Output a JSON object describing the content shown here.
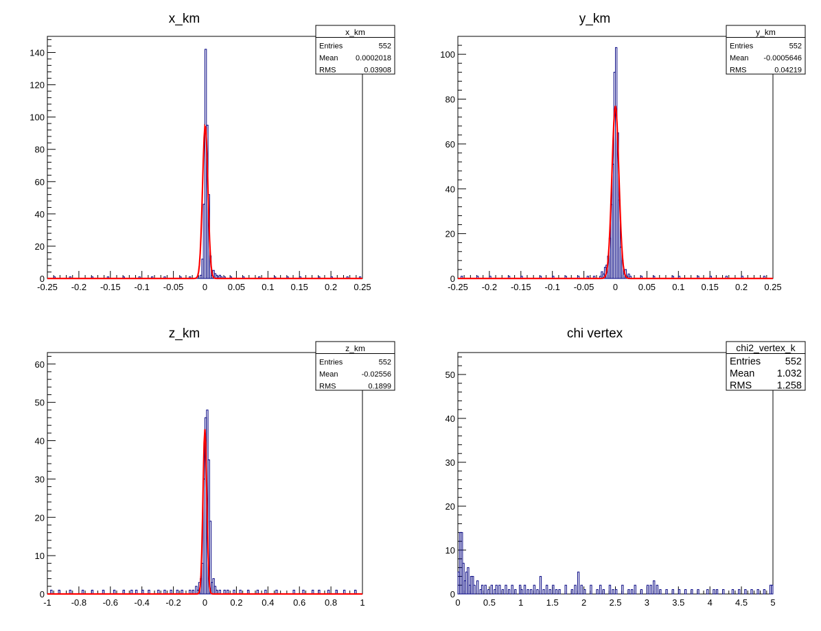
{
  "chart_data": [
    {
      "type": "histogram",
      "title": "x_km",
      "xlim": [
        -0.25,
        0.25
      ],
      "ylim": [
        0,
        150
      ],
      "xticks": [
        -0.25,
        -0.2,
        -0.15,
        -0.1,
        -0.05,
        0,
        0.05,
        0.1,
        0.15,
        0.2,
        0.25
      ],
      "xtick_labels": [
        "-0.25",
        "-0.2",
        "-0.15",
        "-0.1",
        "-0.05",
        "0",
        "0.05",
        "0.1",
        "0.15",
        "0.2",
        "0.25"
      ],
      "yticks": [
        0,
        20,
        40,
        60,
        80,
        100,
        120,
        140
      ],
      "ytick_labels": [
        "0",
        "20",
        "40",
        "60",
        "80",
        "100",
        "120",
        "140"
      ],
      "hist": {
        "bin_width": 0.0025,
        "bins": [
          [
            -0.02,
            0
          ],
          [
            -0.0125,
            1
          ],
          [
            -0.01,
            0
          ],
          [
            -0.0075,
            2
          ],
          [
            -0.005,
            12
          ],
          [
            -0.0025,
            46
          ],
          [
            0,
            142
          ],
          [
            0.0025,
            95
          ],
          [
            0.005,
            52
          ],
          [
            0.0075,
            14
          ],
          [
            0.01,
            2
          ],
          [
            0.0125,
            5
          ],
          [
            0.015,
            3
          ],
          [
            0.0175,
            2
          ],
          [
            0.02,
            1
          ],
          [
            0.0225,
            2
          ],
          [
            0.025,
            1
          ],
          [
            0.03,
            1
          ]
        ],
        "outliers": [
          -0.24,
          -0.215,
          -0.18,
          -0.155,
          -0.13,
          -0.105,
          -0.085,
          -0.065,
          -0.04,
          -0.025,
          0.04,
          0.06,
          0.085,
          0.11,
          0.13,
          0.15,
          0.18,
          0.2,
          0.225,
          0.245
        ]
      },
      "fit": {
        "mean": 0.0005,
        "sigma": 0.0042,
        "amplitude": 95
      },
      "stats": {
        "name": "x_km",
        "rows": [
          [
            "Entries",
            "552"
          ],
          [
            "Mean",
            "0.0002018"
          ],
          [
            "RMS",
            "0.03908"
          ]
        ]
      }
    },
    {
      "type": "histogram",
      "title": "y_km",
      "xlim": [
        -0.25,
        0.25
      ],
      "ylim": [
        0,
        108
      ],
      "xticks": [
        -0.25,
        -0.2,
        -0.15,
        -0.1,
        -0.05,
        0,
        0.05,
        0.1,
        0.15,
        0.2,
        0.25
      ],
      "xtick_labels": [
        "-0.25",
        "-0.2",
        "-0.15",
        "-0.1",
        "-0.05",
        "0",
        "0.05",
        "0.1",
        "0.15",
        "0.2",
        "0.25"
      ],
      "yticks": [
        0,
        20,
        40,
        60,
        80,
        100
      ],
      "ytick_labels": [
        "0",
        "20",
        "40",
        "60",
        "80",
        "100"
      ],
      "hist": {
        "bin_width": 0.0025,
        "bins": [
          [
            -0.025,
            1
          ],
          [
            -0.0225,
            3
          ],
          [
            -0.02,
            2
          ],
          [
            -0.0175,
            5
          ],
          [
            -0.015,
            6
          ],
          [
            -0.0125,
            10
          ],
          [
            -0.01,
            18
          ],
          [
            -0.0075,
            33
          ],
          [
            -0.005,
            51
          ],
          [
            -0.0025,
            92
          ],
          [
            0,
            103
          ],
          [
            0.0025,
            65
          ],
          [
            0.005,
            35
          ],
          [
            0.0075,
            14
          ],
          [
            0.01,
            8
          ],
          [
            0.0125,
            2
          ],
          [
            0.015,
            4
          ],
          [
            0.0175,
            1
          ],
          [
            0.02,
            2
          ],
          [
            0.0225,
            1
          ]
        ],
        "outliers": [
          -0.245,
          -0.22,
          -0.2,
          -0.17,
          -0.15,
          -0.12,
          -0.1,
          -0.08,
          -0.06,
          -0.045,
          -0.035,
          0.04,
          0.06,
          0.09,
          0.1,
          0.13,
          0.15,
          0.175,
          0.2,
          0.235
        ]
      },
      "fit": {
        "mean": 0.0,
        "sigma": 0.0055,
        "amplitude": 77
      },
      "stats": {
        "name": "y_km",
        "rows": [
          [
            "Entries",
            "552"
          ],
          [
            "Mean",
            "-0.0005646"
          ],
          [
            "RMS",
            "0.04219"
          ]
        ]
      }
    },
    {
      "type": "histogram",
      "title": "z_km",
      "xlim": [
        -1,
        1
      ],
      "ylim": [
        0,
        63
      ],
      "xticks": [
        -1,
        -0.8,
        -0.6,
        -0.4,
        -0.2,
        0,
        0.2,
        0.4,
        0.6,
        0.8,
        1
      ],
      "xtick_labels": [
        "-1",
        "-0.8",
        "-0.6",
        "-0.4",
        "-0.2",
        "0",
        "0.2",
        "0.4",
        "0.6",
        "0.8",
        "1"
      ],
      "yticks": [
        0,
        10,
        20,
        30,
        40,
        50,
        60
      ],
      "ytick_labels": [
        "0",
        "10",
        "20",
        "30",
        "40",
        "50",
        "60"
      ],
      "hist": {
        "bin_width": 0.01,
        "bins": [
          [
            -0.1,
            1
          ],
          [
            -0.08,
            1
          ],
          [
            -0.06,
            2
          ],
          [
            -0.05,
            1
          ],
          [
            -0.04,
            3
          ],
          [
            -0.03,
            4
          ],
          [
            -0.02,
            8
          ],
          [
            -0.01,
            30
          ],
          [
            0,
            46
          ],
          [
            0.01,
            48
          ],
          [
            0.02,
            35
          ],
          [
            0.03,
            19
          ],
          [
            0.04,
            3
          ],
          [
            0.05,
            4
          ],
          [
            0.06,
            2
          ],
          [
            0.07,
            1
          ],
          [
            0.09,
            1
          ],
          [
            0.12,
            1
          ],
          [
            0.14,
            1
          ]
        ],
        "outliers": [
          -0.98,
          -0.93,
          -0.86,
          -0.78,
          -0.72,
          -0.65,
          -0.58,
          -0.52,
          -0.47,
          -0.44,
          -0.4,
          -0.36,
          -0.3,
          -0.26,
          -0.22,
          -0.18,
          -0.15,
          0.18,
          0.22,
          0.27,
          0.33,
          0.38,
          0.45,
          0.56,
          0.62,
          0.68,
          0.72,
          0.78,
          0.83,
          0.88,
          0.95
        ]
      },
      "fit": {
        "mean": 0.0,
        "sigma": 0.012,
        "amplitude": 43
      },
      "stats": {
        "name": "z_km",
        "rows": [
          [
            "Entries",
            "552"
          ],
          [
            "Mean",
            "-0.02556"
          ],
          [
            "RMS",
            "0.1899"
          ]
        ]
      }
    },
    {
      "type": "histogram",
      "title": "chi vertex",
      "xlim": [
        0,
        5
      ],
      "ylim": [
        0,
        55
      ],
      "xticks": [
        0,
        0.5,
        1,
        1.5,
        2,
        2.5,
        3,
        3.5,
        4,
        4.5,
        5
      ],
      "xtick_labels": [
        "0",
        "0.5",
        "1",
        "1.5",
        "2",
        "2.5",
        "3",
        "3.5",
        "4",
        "4.5",
        "5"
      ],
      "yticks": [
        0,
        10,
        20,
        30,
        40,
        50
      ],
      "ytick_labels": [
        "0",
        "10",
        "20",
        "30",
        "40",
        "50"
      ],
      "hist": {
        "bin_width": 0.025,
        "bins": [
          [
            0,
            5
          ],
          [
            0.025,
            14
          ],
          [
            0.05,
            14
          ],
          [
            0.075,
            7
          ],
          [
            0.1,
            3
          ],
          [
            0.125,
            5
          ],
          [
            0.15,
            6
          ],
          [
            0.175,
            2
          ],
          [
            0.2,
            4
          ],
          [
            0.225,
            4
          ],
          [
            0.25,
            2
          ],
          [
            0.3,
            3
          ],
          [
            0.35,
            1
          ],
          [
            0.375,
            2
          ],
          [
            0.425,
            2
          ],
          [
            0.475,
            1
          ],
          [
            0.525,
            2
          ],
          [
            0.575,
            1
          ],
          [
            0.6,
            2
          ],
          [
            0.65,
            2
          ],
          [
            0.7,
            1
          ],
          [
            0.75,
            2
          ],
          [
            0.8,
            1
          ],
          [
            0.85,
            2
          ],
          [
            0.9,
            1
          ],
          [
            0.975,
            2
          ],
          [
            1.0,
            1
          ],
          [
            1.05,
            2
          ],
          [
            1.1,
            1
          ],
          [
            1.15,
            1
          ],
          [
            1.2,
            2
          ],
          [
            1.25,
            1
          ],
          [
            1.3,
            4
          ],
          [
            1.35,
            1
          ],
          [
            1.4,
            2
          ],
          [
            1.45,
            1
          ],
          [
            1.5,
            2
          ],
          [
            1.55,
            1
          ],
          [
            1.6,
            1
          ],
          [
            1.7,
            2
          ],
          [
            1.8,
            1
          ],
          [
            1.85,
            2
          ],
          [
            1.9,
            5
          ],
          [
            1.95,
            2
          ],
          [
            2.0,
            1
          ],
          [
            2.1,
            2
          ],
          [
            2.2,
            1
          ],
          [
            2.25,
            2
          ],
          [
            2.3,
            1
          ],
          [
            2.4,
            2
          ],
          [
            2.45,
            1
          ],
          [
            2.5,
            1
          ],
          [
            2.6,
            2
          ],
          [
            2.7,
            1
          ],
          [
            2.75,
            1
          ],
          [
            2.8,
            2
          ],
          [
            2.9,
            1
          ],
          [
            3.0,
            2
          ],
          [
            3.05,
            2
          ],
          [
            3.1,
            3
          ],
          [
            3.15,
            2
          ],
          [
            3.2,
            1
          ],
          [
            3.3,
            1
          ],
          [
            3.4,
            1
          ],
          [
            3.5,
            1
          ],
          [
            3.6,
            1
          ],
          [
            3.7,
            1
          ],
          [
            3.8,
            1
          ],
          [
            3.95,
            1
          ],
          [
            4.05,
            1
          ],
          [
            4.1,
            1
          ],
          [
            4.2,
            1
          ],
          [
            4.35,
            1
          ],
          [
            4.45,
            1
          ],
          [
            4.55,
            1
          ],
          [
            4.65,
            1
          ],
          [
            4.75,
            1
          ],
          [
            4.85,
            1
          ],
          [
            4.95,
            2
          ],
          [
            4.975,
            2
          ]
        ],
        "outliers": []
      },
      "fit": null,
      "stats": {
        "name": "chi2_vertex_k",
        "rows": [
          [
            "Entries",
            "552"
          ],
          [
            "Mean",
            "1.032"
          ],
          [
            "RMS",
            "1.258"
          ]
        ]
      }
    }
  ],
  "colors": {
    "histogram": "#000080",
    "fit": "#ff0000",
    "axis": "#000000"
  }
}
